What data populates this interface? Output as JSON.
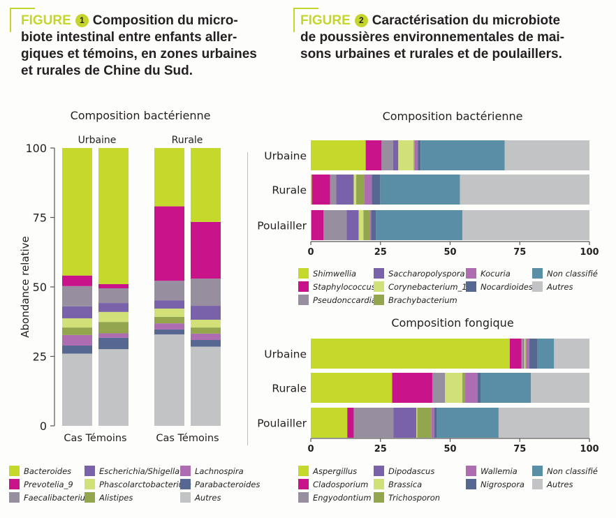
{
  "figure1": {
    "tag": "FIGURE",
    "number": "1",
    "title_lines": [
      "Composition du micro-",
      "biote intestinal entre enfants aller-",
      "giques et témoins, en zones urbaines",
      "et rurales de Chine du Sud."
    ]
  },
  "figure2": {
    "tag": "FIGURE",
    "number": "2",
    "title_lines": [
      "Caractérisation du microbiote",
      "de poussières environnementales de mai-",
      "sons urbaines et rurales et de poulaillers."
    ]
  },
  "colors": {
    "c1": "#c5d92d",
    "c2": "#c9138a",
    "c3": "#978f9f",
    "c4": "#7a62aa",
    "c5": "#d2e177",
    "c6": "#93a64e",
    "c7": "#ad6db0",
    "c8": "#566891",
    "c9": "#5a8ea6",
    "c10": "#c2c3c5"
  },
  "chart_data": [
    {
      "type": "bar",
      "stacked": true,
      "orientation": "vertical",
      "title": "Composition bactérienne",
      "ylabel": "Abondance relative",
      "xlabel": "",
      "ylim": [
        0,
        100
      ],
      "yticks": [
        "0",
        "25",
        "50",
        "75",
        "100"
      ],
      "groups": [
        "Urbaine",
        "Rurale"
      ],
      "categories": [
        "Cas",
        "Témoins",
        "Cas",
        "Témoins"
      ],
      "category_group": [
        "Urbaine",
        "Urbaine",
        "Rurale",
        "Rurale"
      ],
      "stack_order": "bottom-to-top: Autres, Parabacteroides, Lachnospira, Alistipes, Phascolarctobacterium, Escherichia/Shigella, Faecalibacterium, Prevotelia_9, Bacteroides",
      "series": [
        {
          "name": "Autres",
          "color_key": "c10",
          "values": [
            26.0,
            27.6,
            32.9,
            28.5
          ]
        },
        {
          "name": "Parabacteroides",
          "color_key": "c8",
          "values": [
            2.9,
            4.1,
            1.8,
            2.4
          ]
        },
        {
          "name": "Lachnospira",
          "color_key": "c7",
          "values": [
            3.8,
            1.6,
            2.2,
            2.3
          ]
        },
        {
          "name": "Alistipes",
          "color_key": "c6",
          "values": [
            2.7,
            4.1,
            2.3,
            2.2
          ]
        },
        {
          "name": "Phascolarctobacterium",
          "color_key": "c5",
          "values": [
            3.3,
            3.6,
            3.0,
            2.8
          ]
        },
        {
          "name": "Escherichia/Shigella",
          "color_key": "c4",
          "values": [
            4.3,
            3.2,
            3.0,
            5.0
          ]
        },
        {
          "name": "Faecalibacterium",
          "color_key": "c3",
          "values": [
            7.3,
            5.3,
            7.0,
            9.8
          ]
        },
        {
          "name": "Prevotelia_9",
          "color_key": "c2",
          "values": [
            3.8,
            1.5,
            26.8,
            20.4
          ]
        },
        {
          "name": "Bacteroides",
          "color_key": "c1",
          "values": [
            45.9,
            49.0,
            21.0,
            26.6
          ]
        }
      ],
      "legend": {
        "placement": "bottom",
        "entries": [
          "Bacteroides",
          "Prevotelia_9",
          "Faecalibacterium",
          "Escherichia/Shigella",
          "Phascolarctobacterium",
          "Alistipes",
          "Lachnospira",
          "Parabacteroides",
          "Autres"
        ],
        "color_keys": [
          "c1",
          "c2",
          "c3",
          "c4",
          "c5",
          "c6",
          "c7",
          "c8",
          "c10"
        ]
      },
      "grid": false
    },
    {
      "type": "bar",
      "stacked": true,
      "orientation": "horizontal",
      "title": "Composition bactérienne",
      "xlim": [
        0,
        100
      ],
      "xticks": [
        "0",
        "25",
        "50",
        "75",
        "100"
      ],
      "categories": [
        "Urbaine",
        "Rurale",
        "Poulailler"
      ],
      "stack_order": "left-to-right",
      "series": [
        {
          "name": "Shimwellia",
          "color_key": "c1",
          "values": [
            19.7,
            0.4,
            0.2
          ]
        },
        {
          "name": "Staphylococcus",
          "color_key": "c2",
          "values": [
            5.7,
            6.5,
            4.4
          ]
        },
        {
          "name": "Pseudonccardia",
          "color_key": "c3",
          "values": [
            4.1,
            2.2,
            8.3
          ]
        },
        {
          "name": "Saccharopolyspora",
          "color_key": "c4",
          "values": [
            1.9,
            6.3,
            4.3
          ]
        },
        {
          "name": "Corynebacterium_1",
          "color_key": "c5",
          "values": [
            5.5,
            0.9,
            1.7
          ]
        },
        {
          "name": "Brachybacterium",
          "color_key": "c6",
          "values": [
            0.4,
            2.9,
            2.4
          ]
        },
        {
          "name": "Kocuria",
          "color_key": "c7",
          "values": [
            1.1,
            2.7,
            0.4
          ]
        },
        {
          "name": "Nocardioides",
          "color_key": "c8",
          "values": [
            1.0,
            3.0,
            1.7
          ]
        },
        {
          "name": "Non classifié",
          "color_key": "c9",
          "values": [
            30.2,
            28.6,
            31.0
          ]
        },
        {
          "name": "Autres",
          "color_key": "c10",
          "values": [
            30.4,
            46.5,
            45.6
          ]
        }
      ],
      "legend": {
        "placement": "bottom",
        "entries": [
          "Shimwellia",
          "Staphylococcus",
          "Pseudonccardia",
          "Saccharopolyspora",
          "Corynebacterium_1",
          "Brachybacterium",
          "Kocuria",
          "Nocardioides",
          "Non classifié",
          "Autres"
        ],
        "color_keys": [
          "c1",
          "c2",
          "c3",
          "c4",
          "c5",
          "c6",
          "c7",
          "c8",
          "c9",
          "c10"
        ]
      },
      "grid": false
    },
    {
      "type": "bar",
      "stacked": true,
      "orientation": "horizontal",
      "title": "Composition fongique",
      "xlim": [
        0,
        100
      ],
      "xticks": [
        "0",
        "25",
        "50",
        "75",
        "100"
      ],
      "categories": [
        "Urbaine",
        "Rurale",
        "Poulailler"
      ],
      "stack_order": "left-to-right",
      "series": [
        {
          "name": "Aspergillus",
          "color_key": "c1",
          "values": [
            71.4,
            29.2,
            13.1
          ]
        },
        {
          "name": "Cladosporium",
          "color_key": "c2",
          "values": [
            4.2,
            14.4,
            2.3
          ]
        },
        {
          "name": "Engyodontium",
          "color_key": "c3",
          "values": [
            0.7,
            4.6,
            14.3
          ]
        },
        {
          "name": "Dipodascus",
          "color_key": "c4",
          "values": [
            0.3,
            0.0,
            8.2
          ]
        },
        {
          "name": "Brassica",
          "color_key": "c5",
          "values": [
            0.4,
            6.2,
            0.3
          ]
        },
        {
          "name": "Trichosporon",
          "color_key": "c6",
          "values": [
            0.3,
            1.0,
            5.1
          ]
        },
        {
          "name": "Wallemia",
          "color_key": "c7",
          "values": [
            1.1,
            4.5,
            1.0
          ]
        },
        {
          "name": "Nigrospora",
          "color_key": "c8",
          "values": [
            2.8,
            1.0,
            1.0
          ]
        },
        {
          "name": "Non classifié",
          "color_key": "c9",
          "values": [
            6.1,
            18.1,
            22.1
          ]
        },
        {
          "name": "Autres",
          "color_key": "c10",
          "values": [
            12.7,
            21.0,
            32.6
          ]
        }
      ],
      "legend": {
        "placement": "bottom",
        "entries": [
          "Aspergillus",
          "Cladosporium",
          "Engyodontium",
          "Dipodascus",
          "Brassica",
          "Trichosporon",
          "Wallemia",
          "Nigrospora",
          "Non classifié",
          "Autres"
        ],
        "color_keys": [
          "c1",
          "c2",
          "c3",
          "c4",
          "c5",
          "c6",
          "c7",
          "c8",
          "c9",
          "c10"
        ]
      },
      "grid": false
    }
  ]
}
